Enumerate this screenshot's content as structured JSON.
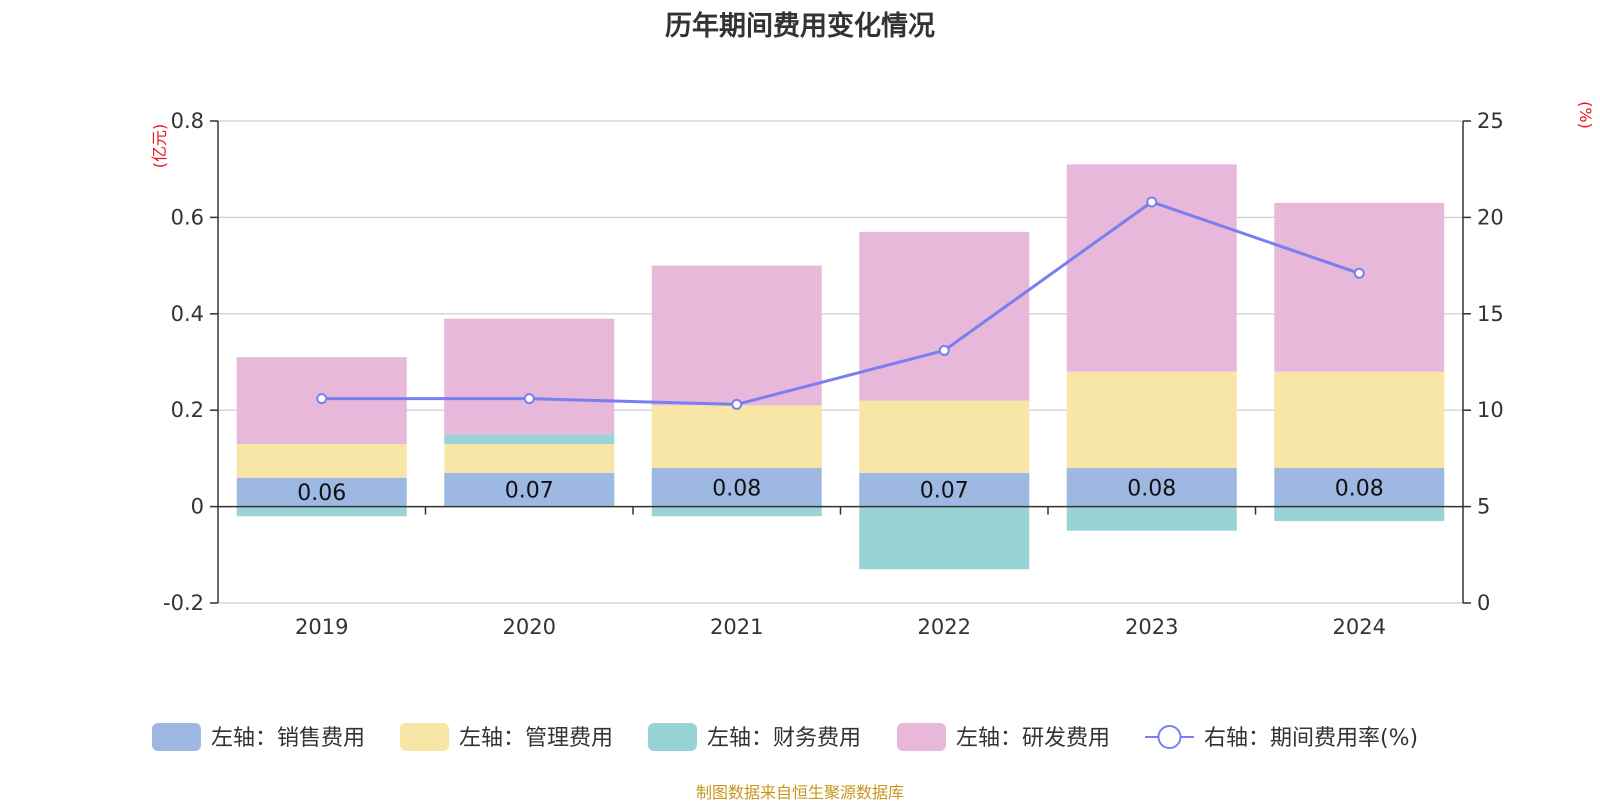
{
  "chart_data": {
    "type": "bar",
    "title": "历年期间费用变化情况",
    "categories": [
      "2019",
      "2020",
      "2021",
      "2022",
      "2023",
      "2024"
    ],
    "left_axis": {
      "unit": "(亿元)",
      "ylim": [
        -0.2,
        0.8
      ],
      "ticks": [
        "0.8",
        "0.6",
        "0.4",
        "0.2",
        "0",
        "-0.2"
      ],
      "tick_values": [
        0.8,
        0.6,
        0.4,
        0.2,
        0,
        -0.2
      ]
    },
    "right_axis": {
      "unit": "(%)",
      "ylim": [
        0,
        25
      ],
      "ticks": [
        "25",
        "20",
        "15",
        "10",
        "5",
        "0"
      ],
      "tick_values": [
        25,
        20,
        15,
        10,
        5,
        0
      ]
    },
    "grid": true,
    "stacked": true,
    "series": [
      {
        "name": "左轴：销售费用",
        "axis": "left",
        "kind": "bar",
        "color": "#9db8e2",
        "values": [
          0.06,
          0.07,
          0.08,
          0.07,
          0.08,
          0.08
        ],
        "labels": [
          "0.06",
          "0.07",
          "0.08",
          "0.07",
          "0.08",
          "0.08"
        ]
      },
      {
        "name": "左轴：管理费用",
        "axis": "left",
        "kind": "bar",
        "color": "#f8e6a6",
        "values": [
          0.07,
          0.06,
          0.13,
          0.15,
          0.2,
          0.2
        ]
      },
      {
        "name": "左轴：财务费用",
        "axis": "left",
        "kind": "bar",
        "color": "#98d4d5",
        "values": [
          -0.02,
          0.02,
          -0.02,
          -0.13,
          -0.05,
          -0.03
        ]
      },
      {
        "name": "左轴：研发费用",
        "axis": "left",
        "kind": "bar",
        "color": "#e7b8d9",
        "values": [
          0.18,
          0.24,
          0.29,
          0.35,
          0.43,
          0.35
        ]
      },
      {
        "name": "右轴：期间费用率(%)",
        "axis": "right",
        "kind": "line",
        "color": "#7a7ff0",
        "values": [
          10.6,
          10.6,
          10.3,
          13.1,
          20.8,
          17.1
        ]
      }
    ],
    "legend_position": "bottom"
  },
  "source_note": "制图数据来自恒生聚源数据库"
}
